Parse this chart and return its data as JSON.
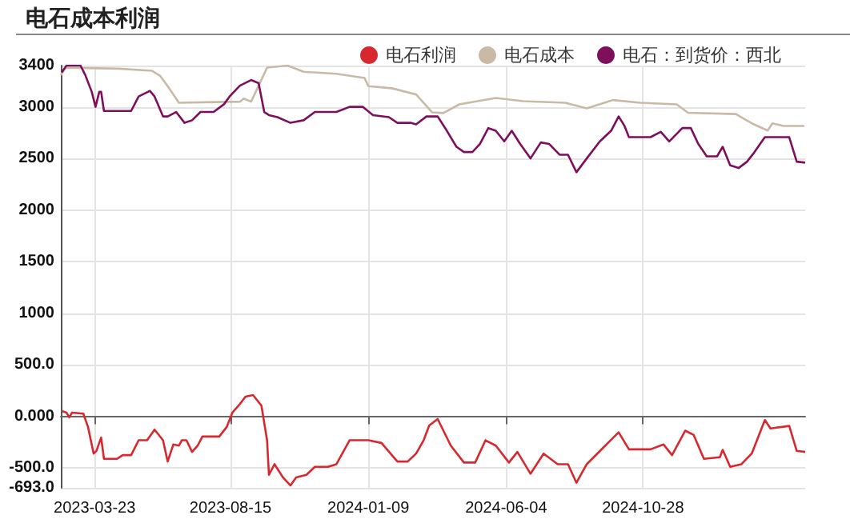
{
  "chart_data": {
    "type": "line",
    "title": "电石成本利润",
    "legend": "top right",
    "grid": true,
    "marker": "none",
    "xlim": [
      "2023-02-15",
      "2025-04-19"
    ],
    "xticks": [
      "2023-03-23",
      "2023-08-15",
      "2024-01-09",
      "2024-06-04",
      "2024-10-28"
    ],
    "ylim": [
      -693,
      3400
    ],
    "yticks": [
      {
        "value": -693,
        "label": "-693.0"
      },
      {
        "value": -500,
        "label": "-500.0"
      },
      {
        "value": 0,
        "label": "0.000"
      },
      {
        "value": 500,
        "label": "500.0"
      },
      1000,
      1500,
      2000,
      2500,
      3000,
      3400
    ],
    "series": [
      {
        "name": "电石利润",
        "color": "#d7282f",
        "x": [
          "2023-02-16",
          "2023-02-21",
          "2023-02-24",
          "2023-02-27",
          "2023-03-11",
          "2023-03-16",
          "2023-03-22",
          "2023-03-25",
          "2023-03-30",
          "2023-04-02",
          "2023-04-16",
          "2023-04-22",
          "2023-05-01",
          "2023-05-09",
          "2023-05-18",
          "2023-05-26",
          "2023-06-04",
          "2023-06-09",
          "2023-06-15",
          "2023-06-21",
          "2023-06-24",
          "2023-06-29",
          "2023-07-05",
          "2023-07-11",
          "2023-07-16",
          "2023-08-03",
          "2023-08-11",
          "2023-08-17",
          "2023-08-25",
          "2023-08-31",
          "2023-09-08",
          "2023-09-17",
          "2023-09-23",
          "2023-09-25",
          "2023-10-01",
          "2023-10-10",
          "2023-10-18",
          "2023-10-24",
          "2023-11-04",
          "2023-11-13",
          "2023-11-27",
          "2023-12-06",
          "2023-12-20",
          "2024-01-09",
          "2024-01-23",
          "2024-02-09",
          "2024-02-20",
          "2024-02-29",
          "2024-03-08",
          "2024-03-14",
          "2024-03-23",
          "2024-04-06",
          "2024-04-20",
          "2024-05-02",
          "2024-05-13",
          "2024-05-24",
          "2024-06-07",
          "2024-06-16",
          "2024-06-30",
          "2024-07-14",
          "2024-07-29",
          "2024-08-09",
          "2024-08-18",
          "2024-08-29",
          "2024-09-15",
          "2024-10-02",
          "2024-10-13",
          "2024-11-05",
          "2024-11-19",
          "2024-11-28",
          "2024-12-12",
          "2024-12-21",
          "2025-01-01",
          "2025-01-18",
          "2025-01-21",
          "2025-01-29",
          "2025-02-10",
          "2025-02-21",
          "2025-03-07",
          "2025-03-13",
          "2025-04-02",
          "2025-04-10",
          "2025-04-19"
        ],
        "values": [
          52,
          36,
          -10,
          36,
          26,
          -103,
          -361,
          -335,
          -206,
          -412,
          -412,
          -376,
          -376,
          -232,
          -232,
          -129,
          -232,
          -438,
          -273,
          -284,
          -232,
          -232,
          -345,
          -284,
          -196,
          -196,
          -103,
          36,
          119,
          191,
          206,
          103,
          -232,
          -567,
          -464,
          -593,
          -670,
          -593,
          -567,
          -490,
          -490,
          -464,
          -232,
          -232,
          -258,
          -438,
          -438,
          -361,
          -232,
          -88,
          -26,
          -284,
          -448,
          -448,
          -232,
          -284,
          -448,
          -345,
          -557,
          -361,
          -464,
          -464,
          -644,
          -464,
          -309,
          -155,
          -320,
          -320,
          -273,
          -376,
          -139,
          -180,
          -412,
          -397,
          -325,
          -490,
          -464,
          -361,
          -36,
          -118,
          -93,
          -335,
          -345
        ]
      },
      {
        "name": "电石成本",
        "color": "#c9baa5",
        "x": [
          "2023-02-15",
          "2023-02-20",
          "2023-04-18",
          "2023-05-23",
          "2023-06-01",
          "2023-06-09",
          "2023-06-21",
          "2023-08-25",
          "2023-08-29",
          "2023-09-06",
          "2023-09-23",
          "2023-10-15",
          "2023-11-01",
          "2023-12-06",
          "2024-01-05",
          "2024-01-09",
          "2024-02-03",
          "2024-02-29",
          "2024-03-17",
          "2024-03-29",
          "2024-04-15",
          "2024-05-24",
          "2024-06-22",
          "2024-08-06",
          "2024-08-29",
          "2024-09-26",
          "2024-10-25",
          "2024-12-03",
          "2024-12-15",
          "2025-02-04",
          "2025-02-21",
          "2025-03-10",
          "2025-03-15",
          "2025-03-27",
          "2025-04-18"
        ],
        "values": [
          3307,
          3380,
          3370,
          3350,
          3300,
          3200,
          3040,
          3050,
          3080,
          3050,
          3380,
          3400,
          3340,
          3320,
          3280,
          3200,
          3180,
          3120,
          2947,
          2940,
          3024,
          3086,
          3055,
          3040,
          2985,
          3066,
          3040,
          3024,
          2943,
          2930,
          2840,
          2770,
          2840,
          2815,
          2815
        ]
      },
      {
        "name": "电石：到货价：西北",
        "color": "#7d0f5c",
        "x": [
          "2023-02-16",
          "2023-02-21",
          "2023-03-08",
          "2023-03-13",
          "2023-03-20",
          "2023-03-24",
          "2023-03-28",
          "2023-03-30",
          "2023-04-02",
          "2023-05-01",
          "2023-05-09",
          "2023-05-21",
          "2023-05-26",
          "2023-06-04",
          "2023-06-09",
          "2023-06-18",
          "2023-06-27",
          "2023-07-05",
          "2023-07-14",
          "2023-07-28",
          "2023-08-08",
          "2023-08-14",
          "2023-08-25",
          "2023-09-06",
          "2023-09-14",
          "2023-09-20",
          "2023-09-25",
          "2023-10-04",
          "2023-10-18",
          "2023-11-01",
          "2023-11-13",
          "2023-12-06",
          "2023-12-20",
          "2024-01-03",
          "2024-01-14",
          "2024-01-31",
          "2024-02-09",
          "2024-02-23",
          "2024-02-29",
          "2024-03-11",
          "2024-03-23",
          "2024-03-31",
          "2024-04-12",
          "2024-04-20",
          "2024-04-29",
          "2024-05-07",
          "2024-05-16",
          "2024-05-24",
          "2024-06-02",
          "2024-06-10",
          "2024-06-19",
          "2024-06-30",
          "2024-07-11",
          "2024-07-20",
          "2024-07-31",
          "2024-08-09",
          "2024-08-18",
          "2024-08-29",
          "2024-09-12",
          "2024-09-24",
          "2024-10-02",
          "2024-10-08",
          "2024-10-13",
          "2024-11-05",
          "2024-11-16",
          "2024-11-25",
          "2024-12-09",
          "2024-12-18",
          "2024-12-26",
          "2025-01-04",
          "2025-01-15",
          "2025-01-21",
          "2025-01-29",
          "2025-02-07",
          "2025-02-16",
          "2025-02-24",
          "2025-03-07",
          "2025-04-02",
          "2025-04-10",
          "2025-04-19"
        ],
        "values": [
          3335,
          3400,
          3400,
          3310,
          3145,
          3000,
          3145,
          3145,
          2960,
          2960,
          3100,
          3155,
          3100,
          2907,
          2907,
          2950,
          2845,
          2870,
          2950,
          2950,
          3025,
          3100,
          3205,
          3260,
          3230,
          2950,
          2920,
          2900,
          2845,
          2870,
          2950,
          2950,
          3000,
          3000,
          2920,
          2900,
          2845,
          2845,
          2830,
          2907,
          2907,
          2794,
          2613,
          2562,
          2562,
          2640,
          2794,
          2768,
          2665,
          2768,
          2640,
          2500,
          2655,
          2640,
          2536,
          2536,
          2366,
          2500,
          2665,
          2768,
          2907,
          2820,
          2706,
          2706,
          2758,
          2665,
          2794,
          2794,
          2640,
          2520,
          2520,
          2613,
          2433,
          2407,
          2469,
          2562,
          2706,
          2706,
          2469,
          2459
        ]
      }
    ]
  }
}
